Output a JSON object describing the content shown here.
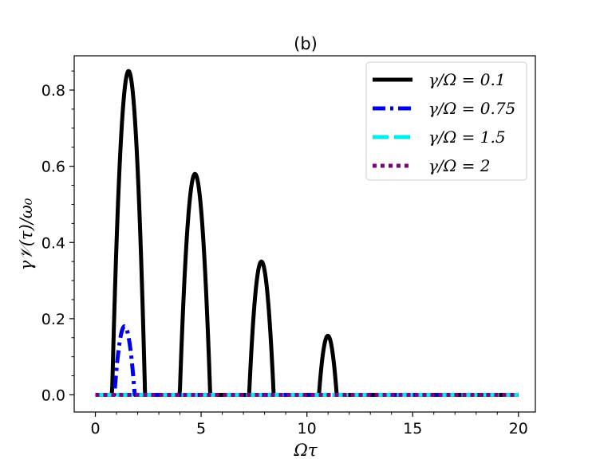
{
  "chart_data": {
    "type": "line",
    "title": "(b)",
    "xlabel": "Ωτ",
    "ylabel": "γ𝒱(τ)/ω₀",
    "xlim": [
      -1,
      20.8
    ],
    "ylim": [
      -0.045,
      0.89
    ],
    "x_ticks": [
      0,
      5,
      10,
      15,
      20
    ],
    "x_tick_labels": [
      "0",
      "5",
      "10",
      "15",
      "20"
    ],
    "y_ticks": [
      0.0,
      0.2,
      0.4,
      0.6,
      0.8
    ],
    "y_tick_labels": [
      "0.0",
      "0.2",
      "0.4",
      "0.6",
      "0.8"
    ],
    "grid": false,
    "legend_position": "top-right",
    "series": [
      {
        "name": "γ/Ω = 0.1",
        "color": "#000000",
        "style": "solid",
        "domain": [
          0,
          20
        ],
        "peaks": [
          {
            "center": 1.57,
            "half_width": 0.78,
            "peak": 0.85
          },
          {
            "center": 4.71,
            "half_width": 0.72,
            "peak": 0.58
          },
          {
            "center": 7.85,
            "half_width": 0.58,
            "peak": 0.35
          },
          {
            "center": 10.99,
            "half_width": 0.42,
            "peak": 0.155
          }
        ]
      },
      {
        "name": "γ/Ω = 0.75",
        "color": "#0000ee",
        "style": "dashdot",
        "domain": [
          0,
          20
        ],
        "peaks": [
          {
            "center": 1.38,
            "half_width": 0.48,
            "peak": 0.18
          }
        ]
      },
      {
        "name": "γ/Ω = 1.5",
        "color": "#00eeee",
        "style": "dashed",
        "domain": [
          0,
          20
        ],
        "peaks": []
      },
      {
        "name": "γ/Ω = 2",
        "color": "#800080",
        "style": "dotted",
        "domain": [
          0,
          20
        ],
        "peaks": []
      }
    ]
  }
}
